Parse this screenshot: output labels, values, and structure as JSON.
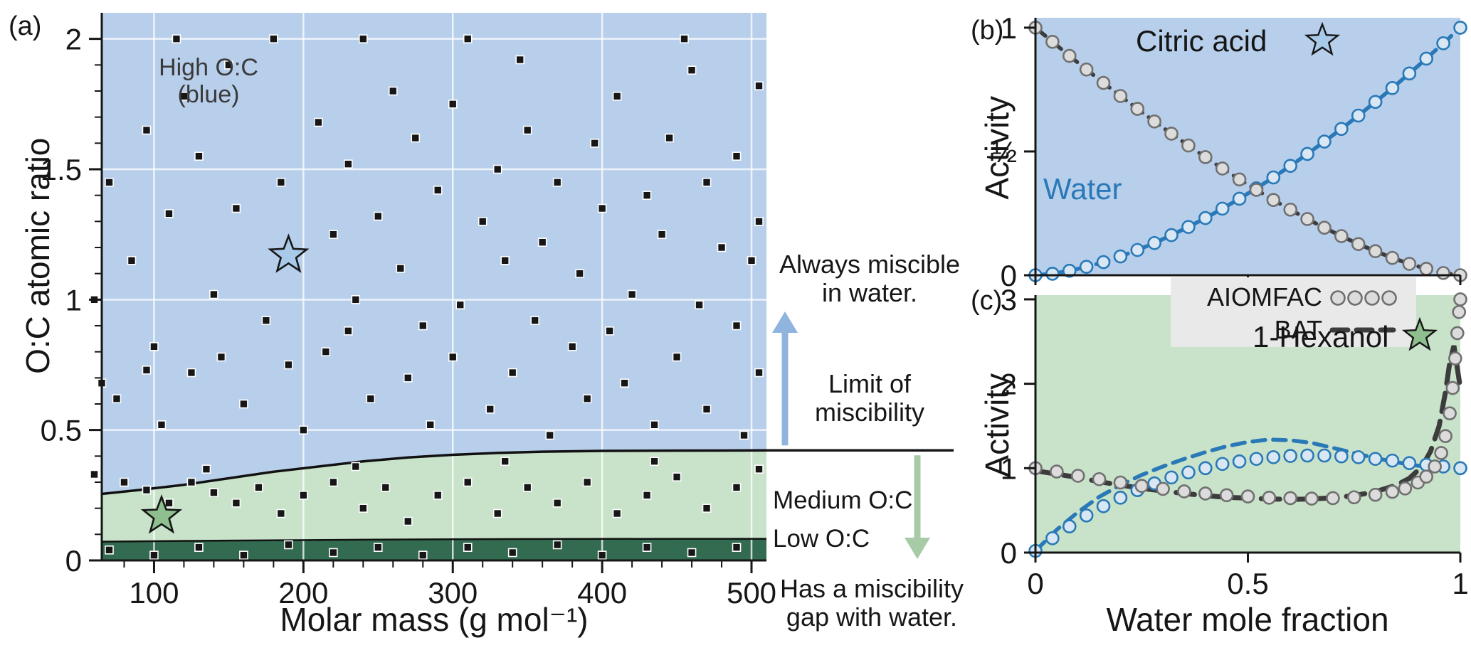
{
  "figure": {
    "panel_a_label": "(a)",
    "panel_b_label": "(b)",
    "panel_c_label": "(c)"
  },
  "panel_a": {
    "region_high_label": "High O:C\n(blue)",
    "annotation_always": "Always miscible\nin water.",
    "annotation_limit": "Limit of\nmiscibility",
    "annotation_medium": "Medium O:C",
    "annotation_low": "Low O:C",
    "annotation_gap": "Has a miscibility\ngap with water."
  },
  "panel_b": {
    "label_citric": "Citric acid",
    "label_water": "Water"
  },
  "panel_c": {
    "label_hexanol": "1-Hexanol"
  },
  "legend": {
    "aiomfac": "AIOMFAC",
    "bat": "BAT"
  },
  "colors": {
    "high_oc_blue": "#b8cfeb",
    "medium_oc_green": "#c8e3c9",
    "low_oc_dark_green": "#336b51",
    "water_blue": "#2979b8",
    "dashed_dark": "#3c3c3c",
    "arrow_blue": "#8fb4de",
    "arrow_green": "#a6cba6",
    "star_blue": "#a9c9e9",
    "star_green": "#8fbf8f"
  },
  "chart_data": [
    {
      "panel": "a",
      "type": "scatter",
      "xlabel": "Molar mass (g mol⁻¹)",
      "ylabel": "O:C atomic ratio",
      "xlim": [
        65,
        510
      ],
      "ylim": [
        0,
        2.1
      ],
      "xticks": [
        100,
        200,
        300,
        400,
        500
      ],
      "xtick_labels": [
        "100",
        "200",
        "300",
        "400",
        "500"
      ],
      "yticks": [
        0,
        0.5,
        1,
        1.5,
        2
      ],
      "ytick_labels": [
        "0",
        "0.5",
        "1",
        "1.5",
        "2"
      ],
      "grid": true,
      "regions": [
        {
          "name": "high-oc",
          "label": "High O:C (blue)",
          "color": "#b8cfeb",
          "meaning": "Always miscible in water."
        },
        {
          "name": "medium-oc",
          "label": "Medium O:C",
          "color": "#c8e3c9",
          "meaning": "Has a miscibility gap with water."
        },
        {
          "name": "low-oc",
          "label": "Low O:C",
          "color": "#336b51",
          "meaning": "Has a miscibility gap with water."
        }
      ],
      "miscibility_boundary": [
        [
          65,
          0.255
        ],
        [
          90,
          0.27
        ],
        [
          120,
          0.29
        ],
        [
          150,
          0.315
        ],
        [
          180,
          0.34
        ],
        [
          210,
          0.36
        ],
        [
          240,
          0.38
        ],
        [
          270,
          0.395
        ],
        [
          300,
          0.405
        ],
        [
          330,
          0.412
        ],
        [
          360,
          0.417
        ],
        [
          400,
          0.42
        ],
        [
          450,
          0.421
        ],
        [
          510,
          0.422
        ]
      ],
      "low_oc_boundary": [
        [
          65,
          0.072
        ],
        [
          150,
          0.076
        ],
        [
          250,
          0.08
        ],
        [
          350,
          0.082
        ],
        [
          450,
          0.083
        ],
        [
          510,
          0.083
        ]
      ],
      "stars": [
        {
          "name": "1-hexanol",
          "x": 105,
          "y": 0.17,
          "color": "#8fbf8f"
        },
        {
          "name": "citric-acid",
          "x": 190,
          "y": 1.17,
          "color": "#a9c9e9"
        }
      ],
      "points": [
        [
          115,
          2
        ],
        [
          180,
          2
        ],
        [
          240,
          2
        ],
        [
          310,
          2
        ],
        [
          455,
          2
        ],
        [
          150,
          1.9
        ],
        [
          345,
          1.92
        ],
        [
          460,
          1.88
        ],
        [
          505,
          1.82
        ],
        [
          120,
          1.78
        ],
        [
          260,
          1.8
        ],
        [
          300,
          1.75
        ],
        [
          410,
          1.78
        ],
        [
          95,
          1.65
        ],
        [
          210,
          1.68
        ],
        [
          275,
          1.62
        ],
        [
          350,
          1.65
        ],
        [
          395,
          1.6
        ],
        [
          445,
          1.62
        ],
        [
          130,
          1.55
        ],
        [
          230,
          1.52
        ],
        [
          330,
          1.5
        ],
        [
          490,
          1.55
        ],
        [
          70,
          1.45
        ],
        [
          185,
          1.45
        ],
        [
          290,
          1.42
        ],
        [
          370,
          1.45
        ],
        [
          430,
          1.4
        ],
        [
          470,
          1.45
        ],
        [
          155,
          1.35
        ],
        [
          250,
          1.32
        ],
        [
          320,
          1.3
        ],
        [
          400,
          1.35
        ],
        [
          505,
          1.3
        ],
        [
          110,
          1.33
        ],
        [
          220,
          1.25
        ],
        [
          360,
          1.22
        ],
        [
          440,
          1.25
        ],
        [
          480,
          1.2
        ],
        [
          85,
          1.15
        ],
        [
          265,
          1.12
        ],
        [
          335,
          1.15
        ],
        [
          385,
          1.1
        ],
        [
          500,
          1.15
        ],
        [
          60,
          1
        ],
        [
          140,
          1.02
        ],
        [
          235,
          1
        ],
        [
          305,
          0.98
        ],
        [
          420,
          1.02
        ],
        [
          465,
          0.98
        ],
        [
          175,
          0.92
        ],
        [
          280,
          0.9
        ],
        [
          355,
          0.92
        ],
        [
          405,
          0.88
        ],
        [
          490,
          0.9
        ],
        [
          100,
          0.82
        ],
        [
          215,
          0.8
        ],
        [
          300,
          0.78
        ],
        [
          380,
          0.82
        ],
        [
          450,
          0.78
        ],
        [
          125,
          0.72
        ],
        [
          190,
          0.75
        ],
        [
          270,
          0.7
        ],
        [
          340,
          0.72
        ],
        [
          415,
          0.68
        ],
        [
          505,
          0.72
        ],
        [
          75,
          0.62
        ],
        [
          160,
          0.6
        ],
        [
          245,
          0.62
        ],
        [
          325,
          0.58
        ],
        [
          390,
          0.62
        ],
        [
          470,
          0.58
        ],
        [
          105,
          0.52
        ],
        [
          200,
          0.5
        ],
        [
          285,
          0.52
        ],
        [
          365,
          0.48
        ],
        [
          435,
          0.52
        ],
        [
          495,
          0.48
        ],
        [
          65,
          0.68
        ],
        [
          145,
          0.78
        ],
        [
          95,
          0.73
        ],
        [
          230,
          0.88
        ],
        [
          60,
          0.33
        ],
        [
          80,
          0.3
        ],
        [
          95,
          0.27
        ],
        [
          110,
          0.22
        ],
        [
          125,
          0.3
        ],
        [
          140,
          0.26
        ],
        [
          155,
          0.22
        ],
        [
          170,
          0.28
        ],
        [
          185,
          0.18
        ],
        [
          200,
          0.25
        ],
        [
          220,
          0.3
        ],
        [
          240,
          0.2
        ],
        [
          255,
          0.28
        ],
        [
          270,
          0.15
        ],
        [
          290,
          0.25
        ],
        [
          310,
          0.3
        ],
        [
          330,
          0.18
        ],
        [
          350,
          0.28
        ],
        [
          370,
          0.22
        ],
        [
          390,
          0.3
        ],
        [
          410,
          0.18
        ],
        [
          430,
          0.25
        ],
        [
          450,
          0.32
        ],
        [
          470,
          0.2
        ],
        [
          490,
          0.28
        ],
        [
          505,
          0.35
        ],
        [
          135,
          0.35
        ],
        [
          235,
          0.36
        ],
        [
          335,
          0.38
        ],
        [
          435,
          0.38
        ],
        [
          70,
          0.04
        ],
        [
          100,
          0.02
        ],
        [
          130,
          0.05
        ],
        [
          160,
          0.02
        ],
        [
          190,
          0.06
        ],
        [
          220,
          0.03
        ],
        [
          250,
          0.05
        ],
        [
          280,
          0.02
        ],
        [
          310,
          0.05
        ],
        [
          340,
          0.03
        ],
        [
          370,
          0.06
        ],
        [
          400,
          0.02
        ],
        [
          430,
          0.05
        ],
        [
          460,
          0.03
        ],
        [
          490,
          0.05
        ]
      ]
    },
    {
      "panel": "b",
      "type": "line",
      "title": "Citric acid",
      "ylabel": "Activity",
      "xlim": [
        0,
        1
      ],
      "ylim": [
        0,
        1
      ],
      "xticks": [
        0,
        0.5,
        1
      ],
      "yticks": [
        0,
        0.5,
        1
      ],
      "ytick_labels": [
        "0",
        "½",
        "1"
      ],
      "background": "#b8cfeb",
      "legend_note": "circles = AIOMFAC, dashed = BAT",
      "series": [
        {
          "name": "Water",
          "styles": [
            "dashed",
            "circles"
          ],
          "color": "#2979b8",
          "line_color": "#2979b8",
          "marker_stroke": "#2979b8",
          "marker_fill": "#d8e7f3",
          "x": [
            0,
            0.04,
            0.08,
            0.12,
            0.16,
            0.2,
            0.24,
            0.28,
            0.32,
            0.36,
            0.4,
            0.44,
            0.48,
            0.52,
            0.56,
            0.6,
            0.64,
            0.68,
            0.72,
            0.76,
            0.8,
            0.84,
            0.88,
            0.92,
            0.96,
            1
          ],
          "y": [
            0,
            0.006,
            0.018,
            0.034,
            0.053,
            0.076,
            0.102,
            0.13,
            0.162,
            0.195,
            0.231,
            0.269,
            0.309,
            0.351,
            0.395,
            0.442,
            0.49,
            0.54,
            0.591,
            0.645,
            0.7,
            0.756,
            0.815,
            0.875,
            0.937,
            1
          ]
        },
        {
          "name": "Citric acid",
          "styles": [
            "dashed",
            "circles"
          ],
          "color": "#3c3c3c",
          "line_color": "#3c3c3c",
          "marker_stroke": "#707070",
          "marker_fill": "#dcdcdc",
          "x": [
            0,
            0.04,
            0.08,
            0.12,
            0.16,
            0.2,
            0.24,
            0.28,
            0.32,
            0.36,
            0.4,
            0.44,
            0.48,
            0.52,
            0.56,
            0.6,
            0.64,
            0.68,
            0.72,
            0.76,
            0.8,
            0.84,
            0.88,
            0.92,
            0.96,
            1
          ],
          "y": [
            1,
            0.943,
            0.886,
            0.831,
            0.777,
            0.724,
            0.672,
            0.621,
            0.572,
            0.524,
            0.477,
            0.431,
            0.387,
            0.345,
            0.304,
            0.265,
            0.227,
            0.192,
            0.158,
            0.126,
            0.097,
            0.07,
            0.046,
            0.026,
            0.009,
            0
          ]
        }
      ]
    },
    {
      "panel": "c",
      "type": "line",
      "title": "1-Hexanol",
      "xlabel": "Water mole fraction",
      "ylabel": "Activity",
      "xlim": [
        0,
        1
      ],
      "ylim": [
        0,
        3
      ],
      "xticks": [
        0,
        0.5,
        1
      ],
      "xtick_labels": [
        "0",
        "0.5",
        "1"
      ],
      "yticks": [
        0,
        1,
        2,
        3
      ],
      "ytick_labels": [
        "0",
        "1",
        "2",
        "3"
      ],
      "background": "#c8e3c9",
      "legend_note": "circles = AIOMFAC, dashed = BAT",
      "series": [
        {
          "name": "Water BAT",
          "styles": [
            "dashed"
          ],
          "color": "#2979b8",
          "line_color": "#2979b8",
          "x": [
            0,
            0.05,
            0.1,
            0.15,
            0.2,
            0.25,
            0.3,
            0.35,
            0.4,
            0.45,
            0.5,
            0.55,
            0.6,
            0.65,
            0.7,
            0.75,
            0.8,
            0.85,
            0.9,
            0.95,
            1
          ],
          "y": [
            0.02,
            0.27,
            0.48,
            0.66,
            0.8,
            0.92,
            1.02,
            1.11,
            1.19,
            1.26,
            1.31,
            1.34,
            1.33,
            1.3,
            1.24,
            1.18,
            1.12,
            1.07,
            1.03,
            1.01,
            1
          ]
        },
        {
          "name": "Water AIOMFAC",
          "styles": [
            "circles"
          ],
          "color": "#2979b8",
          "marker_stroke": "#2979b8",
          "marker_fill": "#d8e7f3",
          "x": [
            0,
            0.04,
            0.08,
            0.12,
            0.16,
            0.2,
            0.24,
            0.28,
            0.32,
            0.36,
            0.4,
            0.44,
            0.48,
            0.52,
            0.56,
            0.6,
            0.64,
            0.68,
            0.72,
            0.76,
            0.8,
            0.84,
            0.88,
            0.92,
            0.96,
            1
          ],
          "y": [
            0.02,
            0.17,
            0.31,
            0.44,
            0.55,
            0.65,
            0.74,
            0.82,
            0.89,
            0.95,
            1,
            1.05,
            1.08,
            1.11,
            1.13,
            1.145,
            1.15,
            1.15,
            1.14,
            1.13,
            1.11,
            1.09,
            1.06,
            1.04,
            1.02,
            1
          ]
        },
        {
          "name": "1-Hexanol BAT",
          "styles": [
            "dashed"
          ],
          "color": "#3c3c3c",
          "line_color": "#3c3c3c",
          "line_width": 7,
          "dash": "26 14",
          "x": [
            0,
            0.05,
            0.1,
            0.15,
            0.2,
            0.25,
            0.3,
            0.35,
            0.4,
            0.45,
            0.5,
            0.55,
            0.6,
            0.65,
            0.7,
            0.75,
            0.8,
            0.85,
            0.88,
            0.91,
            0.93,
            0.95,
            0.965,
            0.975,
            0.985,
            1
          ],
          "y": [
            0.97,
            0.93,
            0.89,
            0.84,
            0.8,
            0.76,
            0.73,
            0.7,
            0.675,
            0.655,
            0.645,
            0.635,
            0.63,
            0.635,
            0.65,
            0.675,
            0.72,
            0.8,
            0.88,
            1.02,
            1.2,
            1.5,
            1.9,
            2.25,
            2.45,
            1.95
          ]
        },
        {
          "name": "1-Hexanol AIOMFAC",
          "styles": [
            "circles"
          ],
          "color": "#707070",
          "marker_stroke": "#707070",
          "marker_fill": "#dcdcdc",
          "x": [
            0,
            0.05,
            0.1,
            0.15,
            0.2,
            0.25,
            0.3,
            0.35,
            0.4,
            0.45,
            0.5,
            0.55,
            0.6,
            0.65,
            0.7,
            0.75,
            0.8,
            0.84,
            0.87,
            0.9,
            0.92,
            0.94,
            0.955,
            0.965,
            0.975,
            0.982,
            0.988,
            0.993,
            0.997,
            1
          ],
          "y": [
            1,
            0.96,
            0.91,
            0.87,
            0.83,
            0.79,
            0.755,
            0.725,
            0.7,
            0.68,
            0.665,
            0.65,
            0.645,
            0.64,
            0.645,
            0.655,
            0.685,
            0.72,
            0.76,
            0.83,
            0.9,
            1.02,
            1.18,
            1.38,
            1.65,
            1.95,
            2.3,
            2.6,
            2.85,
            3
          ]
        }
      ]
    }
  ]
}
